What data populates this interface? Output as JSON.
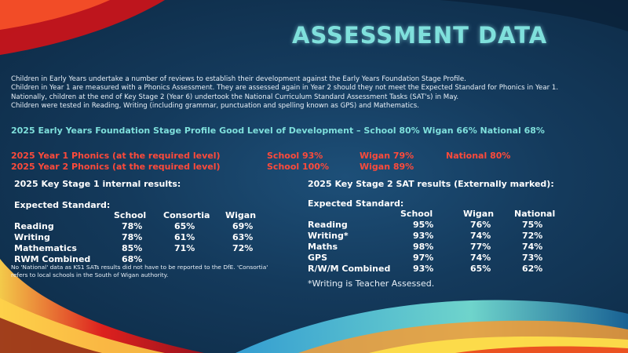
{
  "title": "ASSESSMENT DATA",
  "intro": [
    "Children in Early Years undertake a number of reviews to establish their development against the Early Years Foundation Stage Profile.",
    "Children in Year 1 are measured with a Phonics Assessment. They are assessed again in Year 2 should they not meet the Expected Standard for Phonics in Year 1.",
    "Nationally, children at the end of Key Stage 2 (Year 6) undertook the National Curriculum Standard Assessment Tasks (SAT's) in May.",
    "Children were tested in Reading, Writing (including grammar, punctuation and spelling known as GPS) and Mathematics."
  ],
  "eyfs": "2025 Early Years Foundation Stage Profile Good Level of Development – School 80% Wigan 66%  National 68%",
  "phonics": [
    {
      "label": "2025 Year 1 Phonics (at the required level)",
      "school": "School 93%",
      "wigan": "Wigan 79%",
      "national": "National 80%"
    },
    {
      "label": "2025 Year 2 Phonics (at the required level)",
      "school": "School 100%",
      "wigan": "Wigan 89%",
      "national": ""
    }
  ],
  "ks1": {
    "heading": "2025 Key Stage 1 internal results:",
    "sub": "Expected Standard:",
    "columns": [
      "School",
      "Consortia",
      "Wigan"
    ],
    "rows": [
      {
        "subject": "Reading",
        "values": [
          "78%",
          "65%",
          "69%"
        ]
      },
      {
        "subject": "Writing",
        "values": [
          "78%",
          "61%",
          "63%"
        ]
      },
      {
        "subject": "Mathematics",
        "values": [
          "85%",
          "71%",
          "72%"
        ]
      },
      {
        "subject": "RWM Combined",
        "values": [
          "68%",
          "",
          ""
        ]
      }
    ],
    "note": "No 'National' data as KS1 SATs results did not have to be reported to the DfE. 'Consortia' refers to local schools in the South of Wigan authority."
  },
  "ks2": {
    "heading": "2025 Key Stage 2 SAT results  (Externally marked):",
    "sub": "Expected Standard:",
    "columns": [
      "School",
      "Wigan",
      "National"
    ],
    "rows": [
      {
        "subject": "Reading",
        "values": [
          "95%",
          "76%",
          "75%"
        ]
      },
      {
        "subject": "Writing*",
        "values": [
          "93%",
          "74%",
          "72%"
        ]
      },
      {
        "subject": "Maths",
        "values": [
          "98%",
          "77%",
          "74%"
        ]
      },
      {
        "subject": "GPS",
        "values": [
          "97%",
          "74%",
          "73%"
        ]
      },
      {
        "subject": "R/W/M Combined",
        "values": [
          "93%",
          "65%",
          "62%"
        ]
      }
    ],
    "note": "*Writing is Teacher Assessed."
  },
  "colors": {
    "title": "#7fe0dc",
    "phonics": "#ff4a3a",
    "background": "#143a5c"
  }
}
